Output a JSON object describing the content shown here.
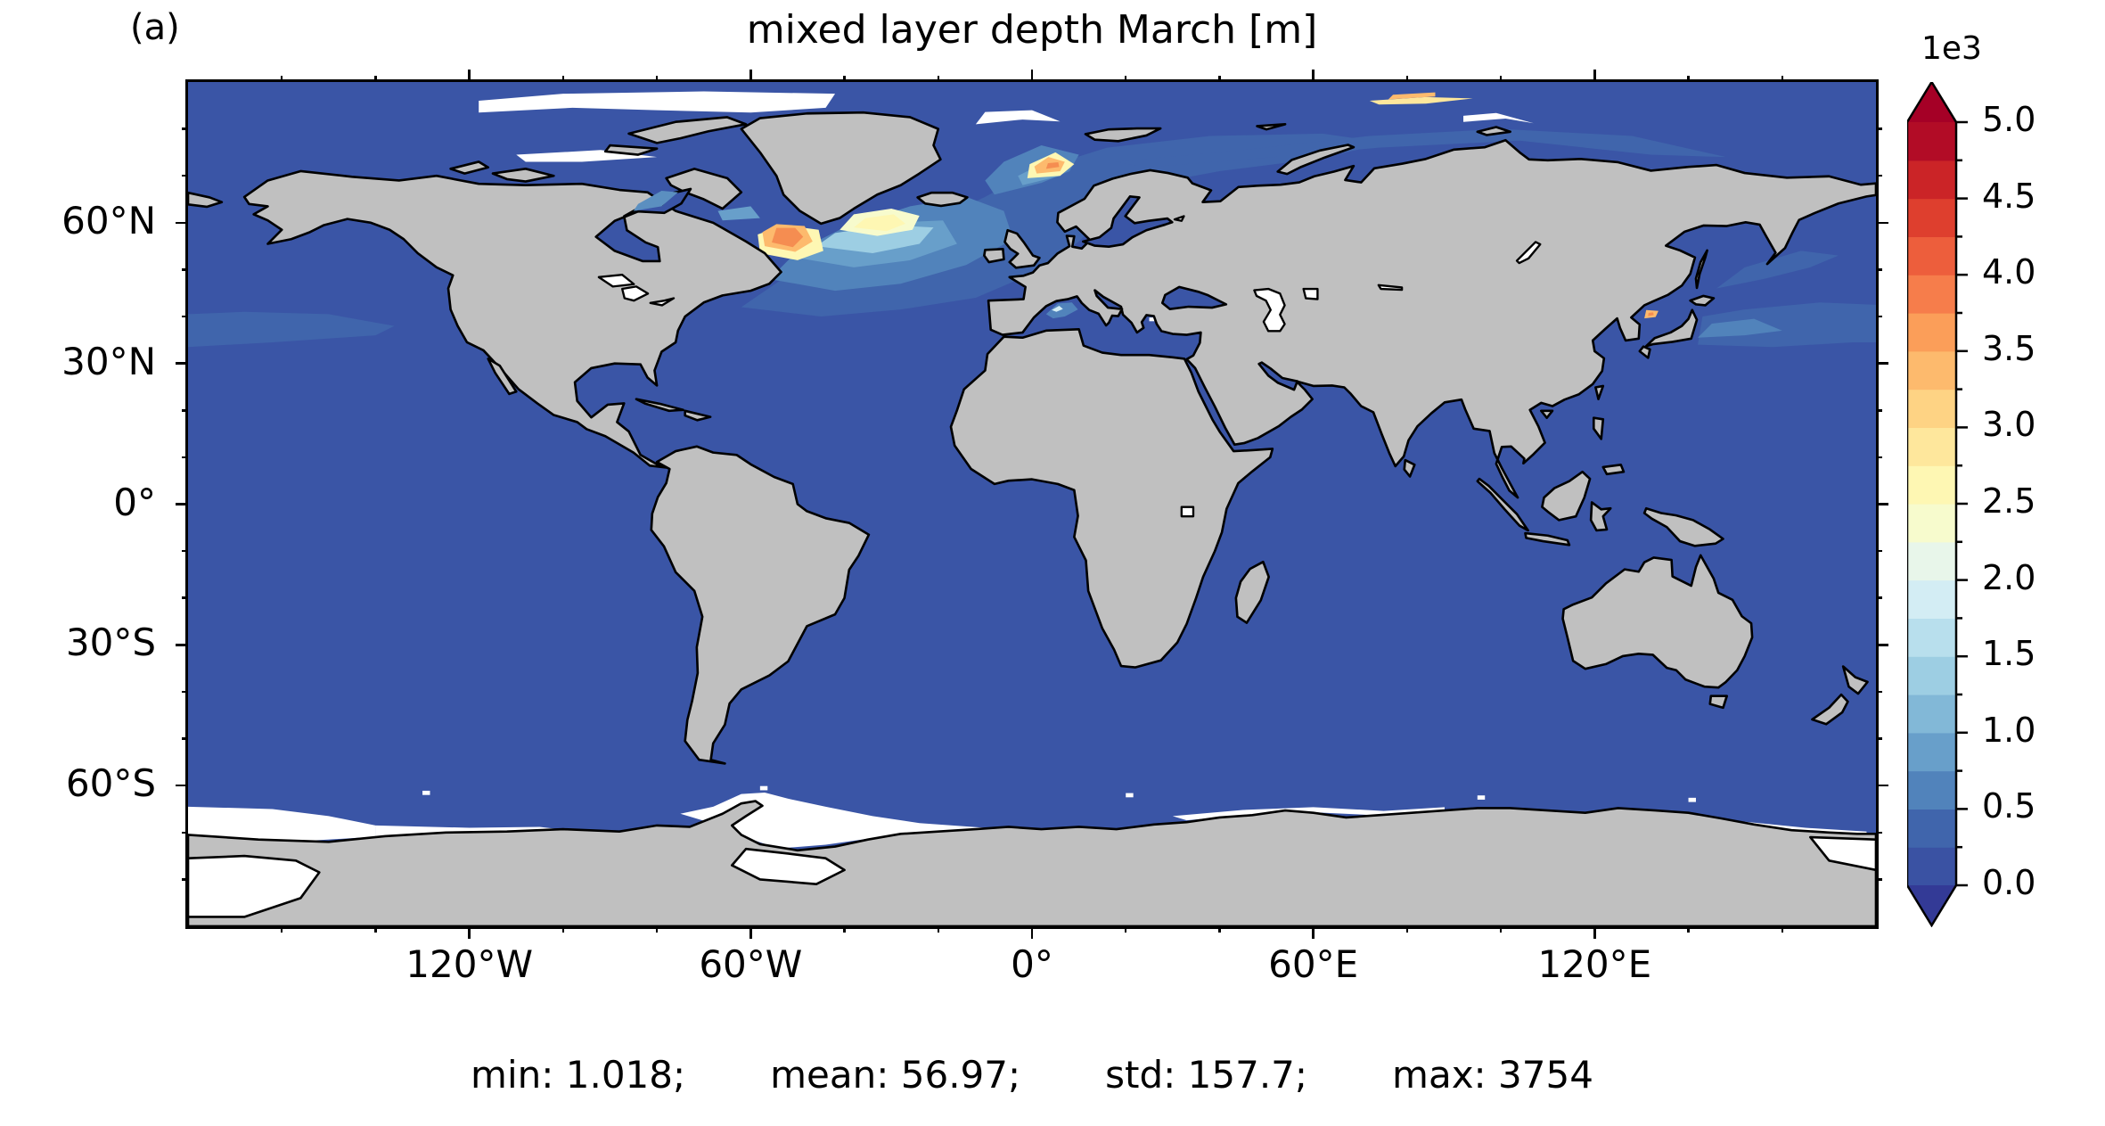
{
  "panel_label": "(a)",
  "title": "mixed layer depth March [m]",
  "stats": {
    "min": "min: 1.018;",
    "mean": "mean: 56.97;",
    "std": "std: 157.7;",
    "max": "max: 3754"
  },
  "axes": {
    "lon_major": [
      {
        "label": "120°W",
        "lon": -120
      },
      {
        "label": "60°W",
        "lon": -60
      },
      {
        "label": "0°",
        "lon": 0
      },
      {
        "label": "60°E",
        "lon": 60
      },
      {
        "label": "120°E",
        "lon": 120
      }
    ],
    "lon_minor": [
      -160,
      -140,
      -100,
      -80,
      -40,
      -20,
      20,
      40,
      80,
      100,
      140,
      160
    ],
    "lat_major": [
      {
        "label": "60°N",
        "lat": 60
      },
      {
        "label": "30°N",
        "lat": 30
      },
      {
        "label": "0°",
        "lat": 0
      },
      {
        "label": "30°S",
        "lat": -30
      },
      {
        "label": "60°S",
        "lat": -60
      }
    ],
    "lat_minor": [
      80,
      70,
      50,
      40,
      20,
      10,
      -10,
      -20,
      -40,
      -50,
      -70,
      -80
    ]
  },
  "colorbar": {
    "exponent_label": "1e3",
    "tick_labels": [
      {
        "label": "5.0",
        "value": 5.0
      },
      {
        "label": "4.5",
        "value": 4.5
      },
      {
        "label": "4.0",
        "value": 4.0
      },
      {
        "label": "3.5",
        "value": 3.5
      },
      {
        "label": "3.0",
        "value": 3.0
      },
      {
        "label": "2.5",
        "value": 2.5
      },
      {
        "label": "2.0",
        "value": 2.0
      },
      {
        "label": "1.5",
        "value": 1.5
      },
      {
        "label": "1.0",
        "value": 1.0
      },
      {
        "label": "0.5",
        "value": 0.5
      },
      {
        "label": "0.0",
        "value": 0.0
      }
    ],
    "minor_values": [
      4.75,
      4.25,
      3.75,
      3.25,
      2.75,
      2.25,
      1.75,
      1.25,
      0.75,
      0.25
    ],
    "band_colors_bottom_to_top": [
      "#3a52a3",
      "#4065ac",
      "#5183bb",
      "#689fca",
      "#82b8d7",
      "#9dcee3",
      "#b8dfed",
      "#d3edf4",
      "#e8f6ea",
      "#f7fbcd",
      "#fef7b3",
      "#fee79c",
      "#fed384",
      "#fdba6d",
      "#fb9e59",
      "#f67d4b",
      "#ed5e3c",
      "#de3f2e",
      "#cb2427",
      "#b20c26"
    ],
    "under_color": "#333a96",
    "over_color": "#a50026",
    "outline_color": "#000000"
  },
  "map": {
    "ocean_color": "#3a55a6",
    "land_color": "#c0c0c0",
    "coast_color": "#000000",
    "nodata_color": "#ffffff"
  },
  "chart_data": {
    "type": "heatmap",
    "title": "mixed layer depth March [m]",
    "variable": "mixed layer depth",
    "month": "March",
    "units": "m",
    "panel": "(a)",
    "projection": "global lat/lon map, 180°W–180°E, 90°S–90°N",
    "colormap": "RdYlBu reversed, 20 discrete bands, extend both",
    "color_scale": {
      "min": 0,
      "max": 5000,
      "band_step": 250,
      "exponent_label": "1e3",
      "tick_step_labeled": 500
    },
    "statistics": {
      "min": 1.018,
      "mean": 56.97,
      "std": 157.7,
      "max": 3754
    },
    "xticks": [
      "120°W",
      "60°W",
      "0°",
      "60°E",
      "120°E"
    ],
    "yticks": [
      "60°N",
      "30°N",
      "0°",
      "30°S",
      "60°S"
    ],
    "features": [
      {
        "region": "most of global ocean",
        "approx_value_m": "< 250 (dark blue)"
      },
      {
        "region": "Labrador Sea / south of Greenland (~55°W, 52–62°N)",
        "approx_value_m": "2500–3500 (orange core, cream rim)"
      },
      {
        "region": "Irminger Sea (~33°W, 58–63°N)",
        "approx_value_m": "2000–2500 (pale yellow)"
      },
      {
        "region": "Greenland/Norwegian Sea (~0–10°E, 69–75°N)",
        "approx_value_m": "2500–3500 (orange patch)"
      },
      {
        "region": "North Atlantic 45–65°N plume",
        "approx_value_m": "500–1750 (light blues)"
      },
      {
        "region": "North Pacific band ~33–42°N",
        "approx_value_m": "250–500"
      },
      {
        "region": "Sea of Japan (~132°E, 40°N)",
        "approx_value_m": "2500–3500 (small orange spot)"
      },
      {
        "region": "NW Mediterranean Gulf of Lion",
        "approx_value_m": "500–2000 (light patch)"
      },
      {
        "region": "Arctic Siberian shelf 75–82°N",
        "approx_value_m": "250–500 with small orange streak near 80°E"
      },
      {
        "region": "sea-ice zones (Antarctic margin, high Arctic, Caspian Sea, lakes)",
        "approx_value_m": "no data (white)"
      }
    ]
  }
}
